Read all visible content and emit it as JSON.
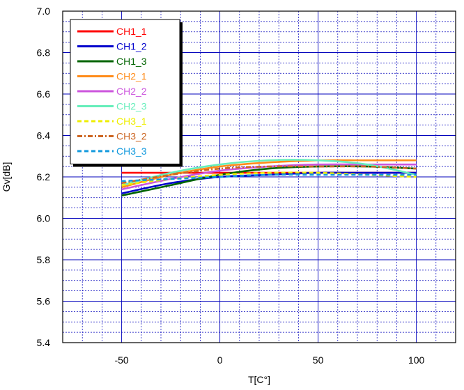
{
  "chart_data": {
    "type": "line",
    "xlabel": "T[C°]",
    "ylabel": "Gv[dB]",
    "xlim": [
      -80,
      120
    ],
    "ylim": [
      5.4,
      7.0
    ],
    "xticks": [
      -50,
      0,
      50,
      100
    ],
    "xtick_labels": [
      "-50",
      "0",
      "50",
      "100"
    ],
    "yticks": [
      5.4,
      5.6,
      5.8,
      6.0,
      6.2,
      6.4,
      6.6,
      6.8,
      7.0
    ],
    "ytick_labels": [
      "5.4",
      "5.6",
      "5.8",
      "6.0",
      "6.2",
      "6.4",
      "6.6",
      "6.8",
      "7.0"
    ],
    "minor_x_step": 10,
    "minor_y_step": 0.05,
    "grid": true,
    "legend_position": "top-left",
    "series": [
      {
        "name": "CH1_1",
        "color": "#ff0000",
        "dash": "solid",
        "x": [
          -50,
          -25,
          0,
          25,
          50,
          75,
          100
        ],
        "y": [
          6.22,
          6.22,
          6.22,
          6.22,
          6.22,
          6.22,
          6.22
        ]
      },
      {
        "name": "CH1_2",
        "color": "#0000cc",
        "dash": "solid",
        "x": [
          -50,
          -25,
          0,
          25,
          50,
          75,
          100
        ],
        "y": [
          6.12,
          6.17,
          6.2,
          6.21,
          6.22,
          6.22,
          6.22
        ]
      },
      {
        "name": "CH1_3",
        "color": "#006400",
        "dash": "solid",
        "x": [
          -50,
          -25,
          0,
          25,
          50,
          75,
          100
        ],
        "y": [
          6.11,
          6.16,
          6.21,
          6.24,
          6.25,
          6.25,
          6.24
        ]
      },
      {
        "name": "CH2_1",
        "color": "#ff8c1a",
        "dash": "solid",
        "x": [
          -50,
          -25,
          0,
          25,
          50,
          75,
          100
        ],
        "y": [
          6.15,
          6.21,
          6.25,
          6.27,
          6.28,
          6.28,
          6.28
        ]
      },
      {
        "name": "CH2_2",
        "color": "#cc55dd",
        "dash": "solid",
        "x": [
          -50,
          -25,
          0,
          25,
          50,
          75,
          100
        ],
        "y": [
          6.14,
          6.19,
          6.23,
          6.25,
          6.26,
          6.26,
          6.26
        ]
      },
      {
        "name": "CH2_3",
        "color": "#66eebb",
        "dash": "solid",
        "x": [
          -50,
          -25,
          0,
          25,
          50,
          75,
          100
        ],
        "y": [
          6.16,
          6.22,
          6.26,
          6.28,
          6.28,
          6.26,
          6.21
        ]
      },
      {
        "name": "CH3_1",
        "color": "#eeee00",
        "dash": "dash",
        "x": [
          -50,
          -25,
          0,
          25,
          50,
          75,
          100
        ],
        "y": [
          6.16,
          6.19,
          6.21,
          6.22,
          6.22,
          6.21,
          6.2
        ]
      },
      {
        "name": "CH3_2",
        "color": "#cc6622",
        "dash": "dashdot",
        "x": [
          -50,
          -25,
          0,
          25,
          50,
          75,
          100
        ],
        "y": [
          6.17,
          6.21,
          6.24,
          6.25,
          6.25,
          6.25,
          6.24
        ]
      },
      {
        "name": "CH3_3",
        "color": "#1199dd",
        "dash": "dash",
        "x": [
          -50,
          -25,
          0,
          25,
          50,
          75,
          100
        ],
        "y": [
          6.18,
          6.19,
          6.2,
          6.21,
          6.21,
          6.21,
          6.21
        ]
      }
    ]
  }
}
